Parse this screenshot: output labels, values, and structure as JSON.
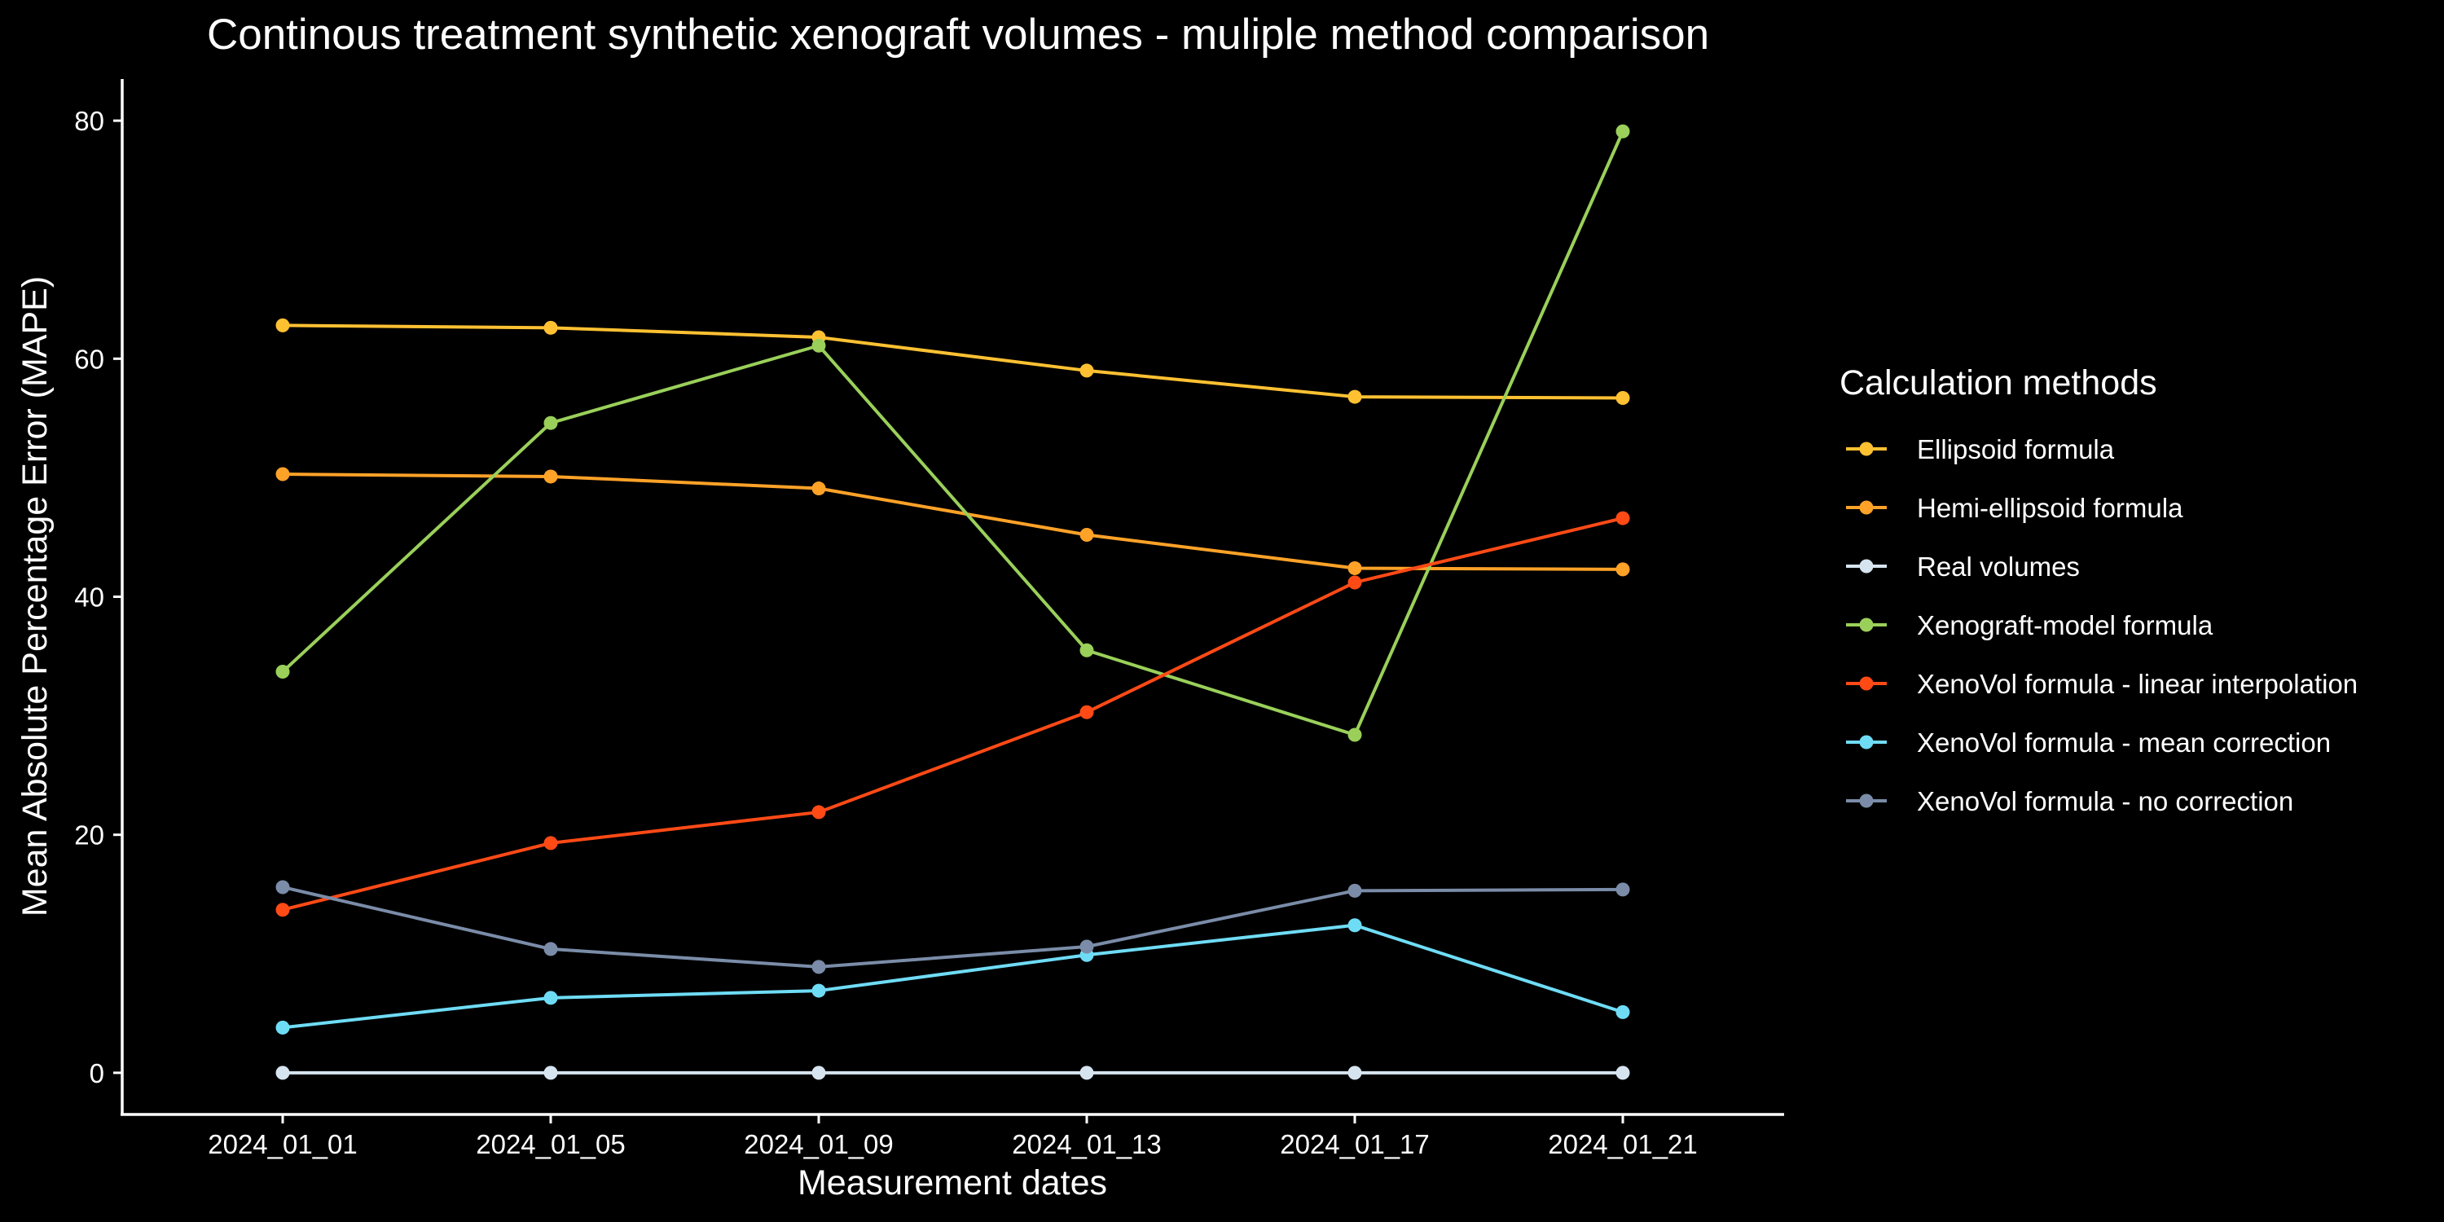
{
  "chart_data": {
    "type": "line",
    "title": "Continous treatment synthetic xenograft volumes - muliple method comparison",
    "xlabel": "Measurement dates",
    "ylabel": "Mean Absolute Percentage Error (MAPE)",
    "categories": [
      "2024_01_01",
      "2024_01_05",
      "2024_01_09",
      "2024_01_13",
      "2024_01_17",
      "2024_01_21"
    ],
    "ylim": [
      -3.5,
      83.5
    ],
    "yticks": [
      0,
      20,
      40,
      60,
      80
    ],
    "grid": false,
    "legend": {
      "title": "Calculation methods",
      "position": "right"
    },
    "series": [
      {
        "name": "Ellipsoid formula",
        "color": "#FFC132",
        "values": [
          62.8,
          62.6,
          61.8,
          59.0,
          56.8,
          56.7
        ]
      },
      {
        "name": "Hemi-ellipsoid formula",
        "color": "#FFA228",
        "values": [
          50.3,
          50.1,
          49.1,
          45.2,
          42.4,
          42.3
        ]
      },
      {
        "name": "Real volumes",
        "color": "#D6E4F0",
        "values": [
          0.0,
          0.0,
          0.0,
          0.0,
          0.0,
          0.0
        ]
      },
      {
        "name": "Xenograft-model formula",
        "color": "#9AD05A",
        "values": [
          33.7,
          54.6,
          61.1,
          35.5,
          28.4,
          79.1
        ]
      },
      {
        "name": "XenoVol formula - linear interpolation",
        "color": "#FF4A16",
        "values": [
          13.7,
          19.3,
          21.9,
          30.3,
          41.2,
          46.6
        ]
      },
      {
        "name": "XenoVol formula - mean correction",
        "color": "#6FDCF6",
        "values": [
          3.8,
          6.3,
          6.9,
          9.9,
          12.4,
          5.1
        ]
      },
      {
        "name": "XenoVol formula - no correction",
        "color": "#7A8CA8",
        "values": [
          15.6,
          10.4,
          8.9,
          10.6,
          15.3,
          15.4
        ]
      }
    ]
  }
}
